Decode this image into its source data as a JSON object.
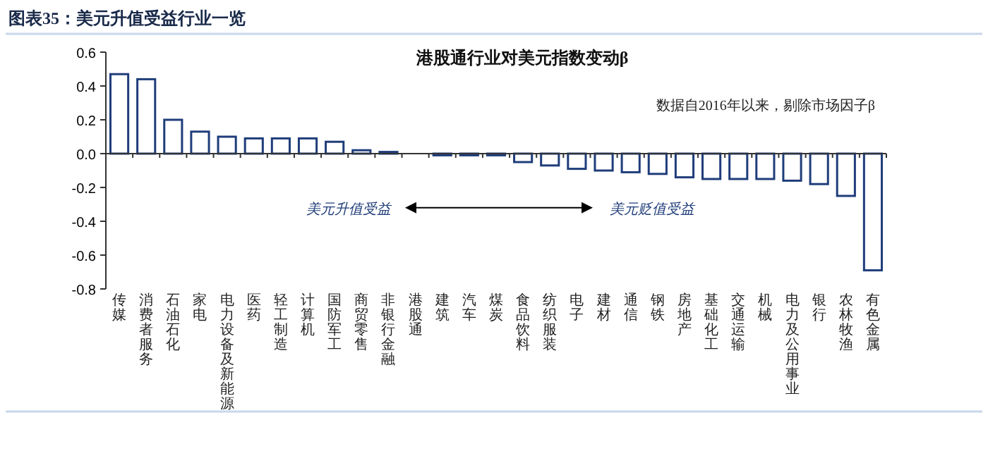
{
  "chart_data": {
    "type": "bar",
    "title": "图表35：美元升值受益行业一览",
    "subtitle": "港股通行业对美元指数变动β",
    "annotations": [
      "数据自2016年以来，剔除市场因子β",
      "美元升值受益",
      "美元贬值受益"
    ],
    "categories": [
      "传媒",
      "消费者服务",
      "石油石化",
      "家电",
      "电力设备及新能源",
      "医药",
      "轻工制造",
      "计算机",
      "国防军工",
      "商贸零售",
      "非银行金融",
      "港股通",
      "建筑",
      "汽车",
      "煤炭",
      "食品饮料",
      "纺织服装",
      "电子",
      "建材",
      "通信",
      "钢铁",
      "房地产",
      "基础化工",
      "交通运输",
      "机械",
      "电力及公用事业",
      "银行",
      "农林牧渔",
      "有色金属"
    ],
    "series": [
      {
        "color": "#1f3d7a",
        "values": [
          0.47,
          0.44,
          0.2,
          0.13,
          0.1,
          0.09,
          0.09,
          0.09,
          0.07,
          0.02,
          0.01,
          0,
          -0.01,
          -0.01,
          -0.01,
          -0.05,
          -0.07,
          -0.09,
          -0.1,
          -0.11,
          -0.12,
          -0.14,
          -0.15,
          -0.15,
          -0.15,
          -0.16,
          -0.18,
          -0.25,
          -0.69
        ]
      }
    ],
    "ylim": [
      -0.8,
      0.6
    ],
    "yticks": [
      {
        "value": -0.8,
        "label": "-0.8"
      },
      {
        "value": -0.6,
        "label": "-0.6"
      },
      {
        "value": -0.4,
        "label": "-0.4"
      },
      {
        "value": -0.2,
        "label": "-0.2"
      },
      {
        "value": 0,
        "label": "0.0"
      },
      {
        "value": 0.2,
        "label": "0.2"
      },
      {
        "value": 0.4,
        "label": "0.4"
      },
      {
        "value": 0.6,
        "label": "0.6"
      }
    ]
  }
}
